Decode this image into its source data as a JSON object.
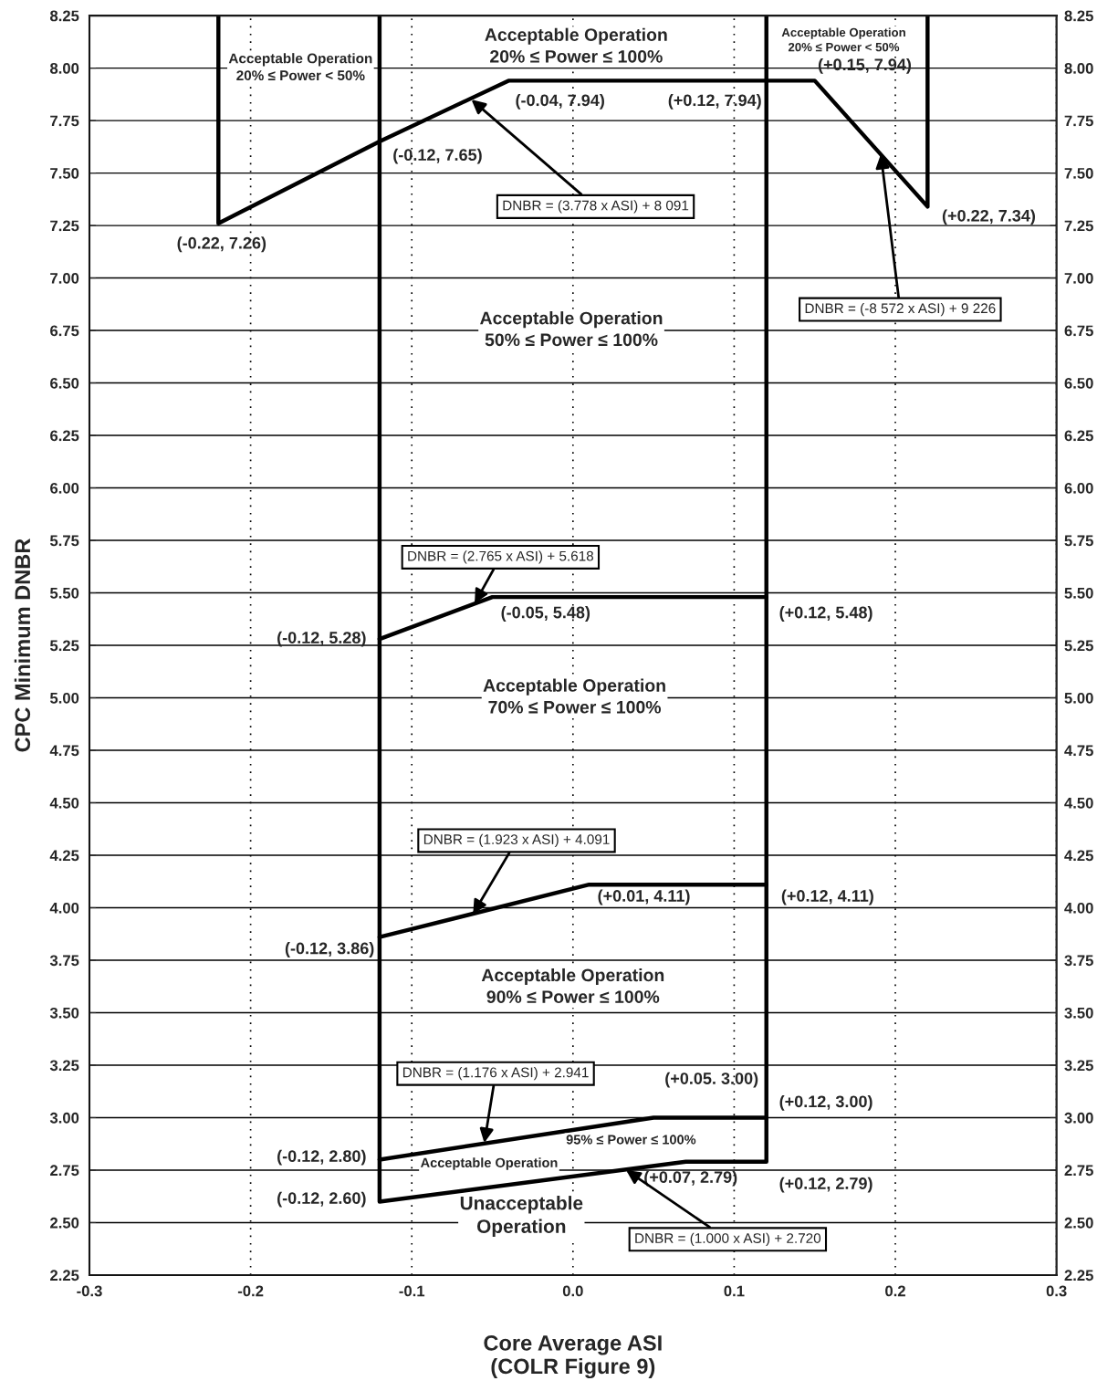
{
  "chart_data": {
    "type": "line",
    "xlabel": "Core Average ASI\n(COLR Figure 9)",
    "ylabel": "CPC Minimum DNBR",
    "xlim": [
      -0.3,
      0.3
    ],
    "xticks": [
      {
        "value": -0.3,
        "label": "-0.3"
      },
      {
        "value": -0.2,
        "label": "-0.2"
      },
      {
        "value": -0.1,
        "label": "-0.1"
      },
      {
        "value": 0,
        "label": "0.0"
      },
      {
        "value": 0.1,
        "label": "0.1"
      },
      {
        "value": 0.2,
        "label": "0.2"
      },
      {
        "value": 0.3,
        "label": "0.3"
      }
    ],
    "ylim": [
      2.25,
      8.25
    ],
    "yticks": [
      2.25,
      {
        "value": 2.5,
        "label": "2.50"
      },
      2.75,
      {
        "value": 3,
        "label": "3.00"
      },
      3.25,
      {
        "value": 3.5,
        "label": "3.50"
      },
      3.75,
      {
        "value": 4,
        "label": "4.00"
      },
      4.25,
      {
        "value": 4.5,
        "label": "4.50"
      },
      4.75,
      {
        "value": 5,
        "label": "5.00"
      },
      5.25,
      {
        "value": 5.5,
        "label": "5.50"
      },
      5.75,
      {
        "value": 6,
        "label": "6.00"
      },
      6.25,
      {
        "value": 6.5,
        "label": "6.50"
      },
      6.75,
      {
        "value": 7,
        "label": "7.00"
      },
      7.25,
      {
        "value": 7.5,
        "label": "7.50"
      },
      7.75,
      {
        "value": 8,
        "label": "8.00"
      },
      8.25
    ],
    "y2lim": [
      2.25,
      8.25
    ],
    "y2ticks": [
      2.25,
      {
        "value": 2.5,
        "label": "2.50"
      },
      2.75,
      {
        "value": 3,
        "label": "3.00"
      },
      3.25,
      {
        "value": 3.5,
        "label": "3.50"
      },
      3.75,
      {
        "value": 4,
        "label": "4.00"
      },
      4.25,
      {
        "value": 4.5,
        "label": "4.50"
      },
      4.75,
      {
        "value": 5,
        "label": "5.00"
      },
      5.25,
      {
        "value": 5.5,
        "label": "5.50"
      },
      5.75,
      {
        "value": 6,
        "label": "6.00"
      },
      6.25,
      {
        "value": 6.5,
        "label": "6.50"
      },
      6.75,
      {
        "value": 7,
        "label": "7.00"
      },
      7.25,
      {
        "value": 7.5,
        "label": "7.50"
      },
      7.75,
      {
        "value": 8,
        "label": "8.00"
      },
      8.25
    ],
    "grid": true,
    "series": [
      {
        "color": "#000000",
        "x": [
          -0.22,
          -0.22,
          -0.12,
          -0.04,
          0.15,
          0.22,
          0.22
        ],
        "values": [
          8.25,
          7.26,
          7.65,
          7.94,
          7.94,
          7.34,
          8.25
        ]
      },
      {
        "color": "#000000",
        "x": [
          -0.12,
          -0.12,
          0.07,
          0.12,
          0.12
        ],
        "values": [
          8.25,
          2.6,
          2.79,
          2.79,
          8.25
        ]
      },
      {
        "color": "#000000",
        "x": [
          -0.12,
          -0.05,
          0.12
        ],
        "values": [
          5.28,
          5.48,
          5.48
        ]
      },
      {
        "color": "#000000",
        "x": [
          -0.12,
          0.01,
          0.12
        ],
        "values": [
          3.86,
          4.11,
          4.11
        ]
      },
      {
        "color": "#000000",
        "x": [
          -0.12,
          0.05,
          0.12
        ],
        "values": [
          2.8,
          3.0,
          3.0
        ]
      }
    ],
    "annotations": [
      {
        "text": "(-0.22, 7.26)",
        "x": -0.22,
        "y": 7.26
      },
      {
        "text": "(-0.12, 7.65)",
        "x": -0.12,
        "y": 7.65
      },
      {
        "text": "(-0.04, 7.94)",
        "x": -0.04,
        "y": 7.94
      },
      {
        "text": "(+0.12, 7.94)",
        "x": 0.12,
        "y": 7.94
      },
      {
        "text": "(+0.15, 7.94)",
        "x": 0.15,
        "y": 7.94
      },
      {
        "text": "(+0.22, 7.34)",
        "x": 0.22,
        "y": 7.34
      },
      {
        "text": "(-0.12, 5.28)",
        "x": -0.12,
        "y": 5.28
      },
      {
        "text": "(-0.05, 5.48)",
        "x": -0.05,
        "y": 5.48
      },
      {
        "text": "(+0.12, 5.48)",
        "x": 0.12,
        "y": 5.48
      },
      {
        "text": "(+0.01, 4.11)",
        "x": 0.01,
        "y": 4.11
      },
      {
        "text": "(+0.12, 4.11)",
        "x": 0.12,
        "y": 4.11
      },
      {
        "text": "(-0.12, 3.86)",
        "x": -0.12,
        "y": 3.86
      },
      {
        "text": "(+0.05. 3.00)",
        "x": 0.05,
        "y": 3.0
      },
      {
        "text": "(+0.12, 3.00)",
        "x": 0.12,
        "y": 3.0
      },
      {
        "text": "(-0.12, 2.80)",
        "x": -0.12,
        "y": 2.8
      },
      {
        "text": "(-0.12, 2.60)",
        "x": -0.12,
        "y": 2.6
      },
      {
        "text": "(+0.07, 2.79)",
        "x": 0.07,
        "y": 2.79
      },
      {
        "text": "(+0.12, 2.79)",
        "x": 0.12,
        "y": 2.79
      },
      "Acceptable Operation\n20% ≤ Power < 50%",
      "Acceptable Operation\n20% ≤ Power ≤ 100%",
      "Acceptable Operation\n20% ≤ Power < 50%",
      "Acceptable Operation\n50% ≤ Power ≤ 100%",
      "Acceptable Operation\n70% ≤ Power ≤ 100%",
      "Acceptable Operation\n90% ≤ Power ≤ 100%",
      "95% ≤ Power ≤ 100%",
      "Acceptable Operation",
      "Unacceptable\nOperation",
      {
        "text": "DNBR = (3.778 x ASI) + 8 091",
        "x": -0.063,
        "y": 7.85
      },
      {
        "text": "DNBR = (-8 572 x ASI) + 9 226",
        "x": 0.191,
        "y": 7.59
      },
      {
        "text": "DNBR = (2.765 x ASI) + 5.618",
        "x": -0.061,
        "y": 5.45
      },
      {
        "text": "DNBR = (1.923 x ASI) + 4.091",
        "x": -0.062,
        "y": 3.97
      },
      {
        "text": "DNBR = (1.176 x ASI) + 2.941",
        "x": -0.055,
        "y": 2.88
      },
      {
        "text": "DNBR = (1.000 x ASI) + 2.720",
        "x": 0.033,
        "y": 2.75
      }
    ]
  }
}
